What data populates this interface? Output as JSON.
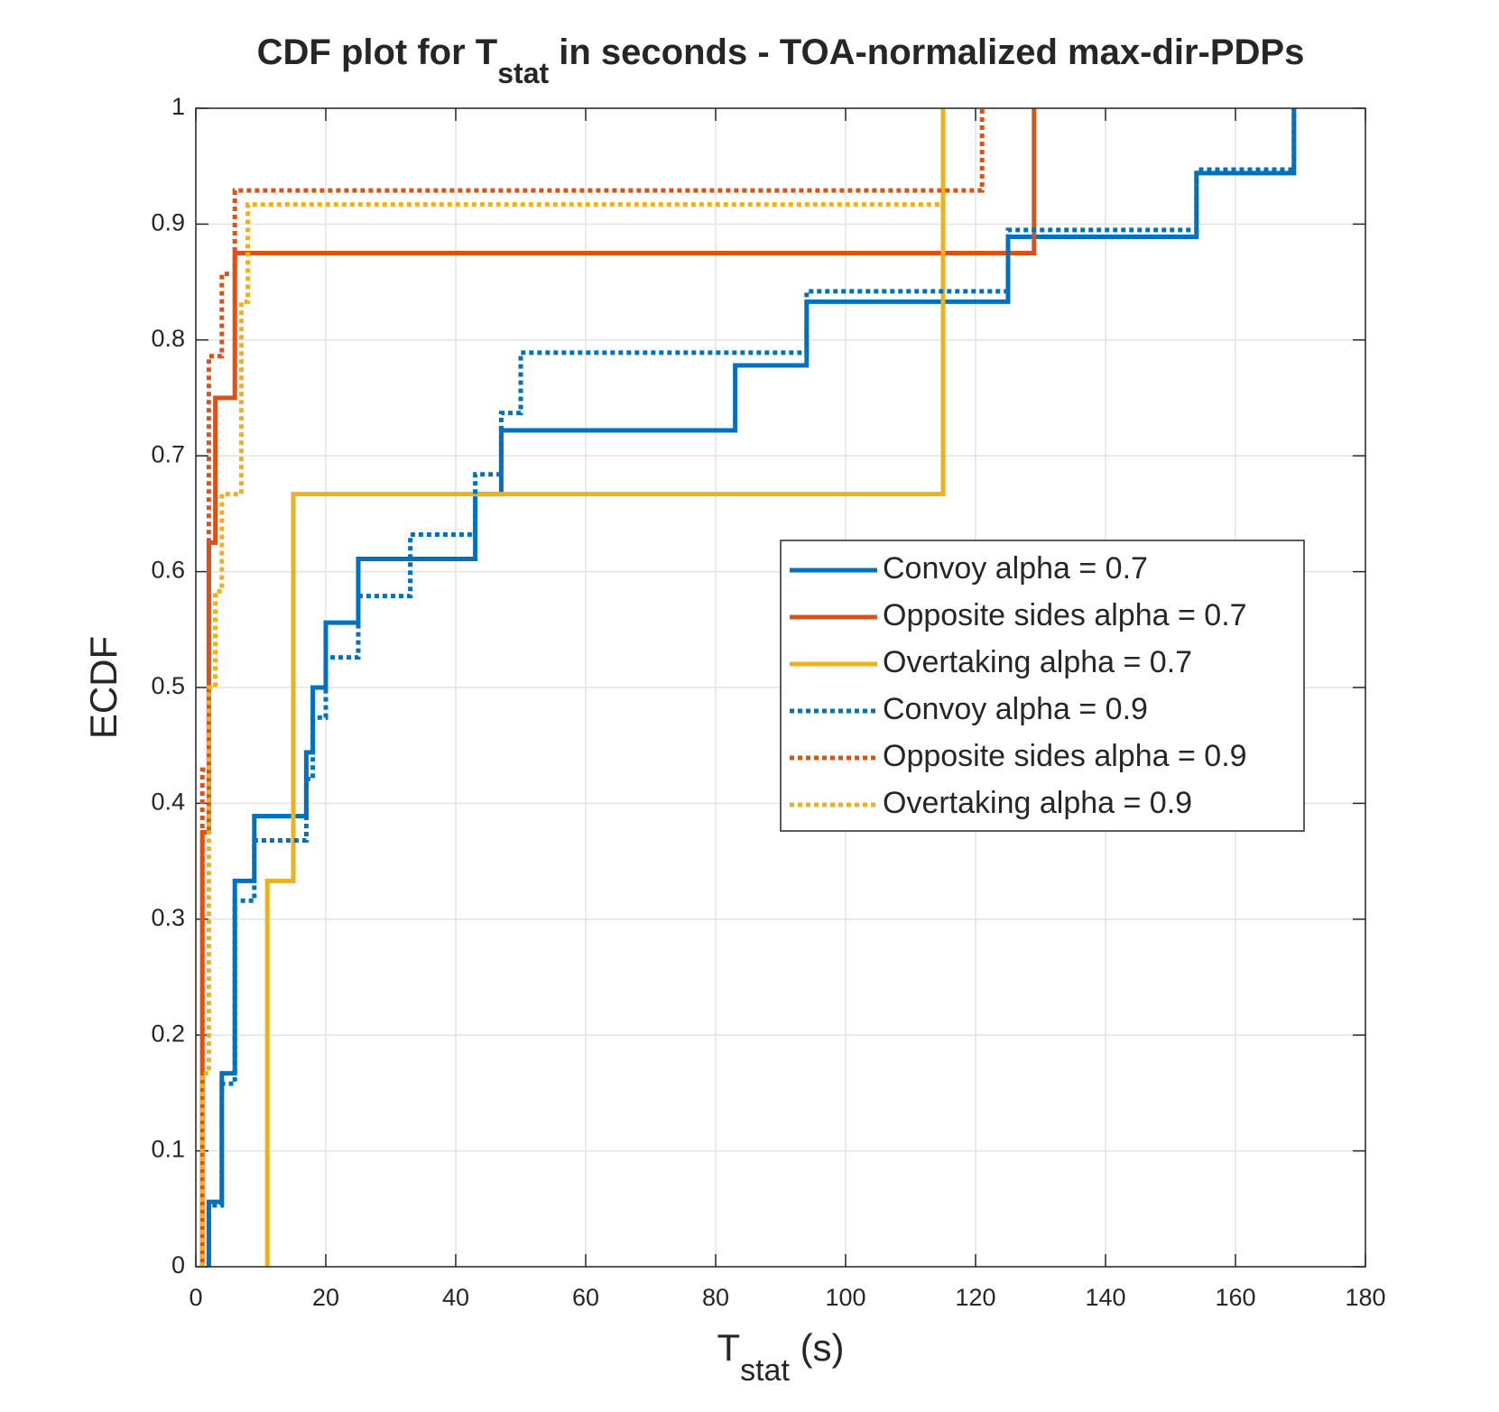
{
  "chart_data": {
    "type": "line",
    "drawstyle": "steps-post",
    "title": {
      "main": "CDF plot for T",
      "sub": "stat",
      "rest": " in seconds - TOA-normalized max-dir-PDPs"
    },
    "xlabel": {
      "main": "T",
      "sub": "stat",
      "rest": " (s)"
    },
    "ylabel": "ECDF",
    "xlim": [
      0,
      180
    ],
    "xticks": [
      0,
      20,
      40,
      60,
      80,
      100,
      120,
      140,
      160,
      180
    ],
    "ylim": [
      0,
      1
    ],
    "yticks": [
      0,
      0.1,
      0.2,
      0.3,
      0.4,
      0.5,
      0.6,
      0.7,
      0.8,
      0.9,
      1
    ],
    "grid": true,
    "legend": "east",
    "series": [
      {
        "name": "Convoy alpha = 0.7",
        "color": "#0072BD",
        "linestyle": "solid",
        "x": [
          2,
          2,
          4,
          6,
          9,
          17,
          18,
          20,
          25,
          43,
          47,
          83,
          94,
          125,
          154,
          169
        ],
        "values": [
          0,
          0.056,
          0.167,
          0.333,
          0.389,
          0.444,
          0.5,
          0.556,
          0.611,
          0.667,
          0.722,
          0.778,
          0.833,
          0.889,
          0.944,
          1
        ]
      },
      {
        "name": "Opposite sides alpha = 0.7",
        "color": "#D95319",
        "linestyle": "solid",
        "x": [
          1,
          1,
          2,
          3,
          6,
          129
        ],
        "values": [
          0,
          0.375,
          0.625,
          0.75,
          0.875,
          1
        ]
      },
      {
        "name": "Overtaking alpha = 0.7",
        "color": "#EDB120",
        "linestyle": "solid",
        "x": [
          11,
          11,
          15,
          115
        ],
        "values": [
          0,
          0.333,
          0.667,
          1
        ]
      },
      {
        "name": "Convoy alpha = 0.9",
        "color": "#0072BD",
        "linestyle": "dotted",
        "x": [
          2,
          2,
          4,
          6,
          9,
          17,
          18,
          20,
          25,
          33,
          43,
          47,
          50,
          94,
          125,
          154,
          169
        ],
        "values": [
          0,
          0.053,
          0.158,
          0.316,
          0.368,
          0.421,
          0.474,
          0.526,
          0.579,
          0.632,
          0.684,
          0.737,
          0.789,
          0.842,
          0.895,
          0.947,
          1
        ]
      },
      {
        "name": "Opposite sides alpha = 0.9",
        "color": "#D95319",
        "linestyle": "dotted",
        "x": [
          1,
          1,
          2,
          4,
          6,
          121
        ],
        "values": [
          0,
          0.429,
          0.786,
          0.857,
          0.929,
          1
        ]
      },
      {
        "name": "Overtaking alpha = 0.9",
        "color": "#EDB120",
        "linestyle": "dotted",
        "x": [
          1,
          1,
          2,
          3,
          4,
          7,
          8,
          115
        ],
        "values": [
          0,
          0.167,
          0.5,
          0.583,
          0.667,
          0.833,
          0.917,
          1
        ]
      }
    ]
  }
}
